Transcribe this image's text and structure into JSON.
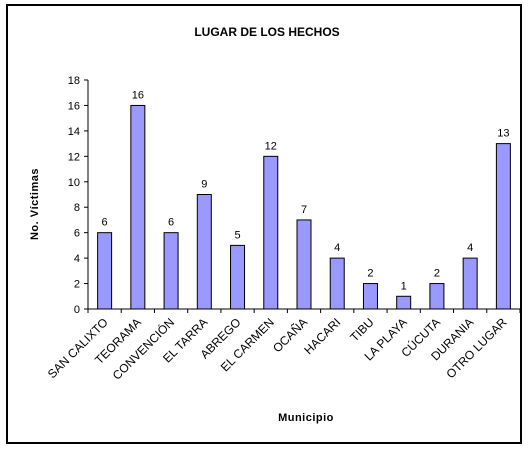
{
  "chart_data": {
    "type": "bar",
    "title": "LUGAR DE LOS HECHOS",
    "xlabel": "Municipio",
    "ylabel": "No. Víctimas",
    "ylim": [
      0,
      18
    ],
    "yticks": [
      0,
      2,
      4,
      6,
      8,
      10,
      12,
      14,
      16,
      18
    ],
    "categories": [
      "SAN CALIXTO",
      "TEORAMA",
      "CONVENCIÓN",
      "EL TARRA",
      "ABREGO",
      "EL CARMEN",
      "OCAÑA",
      "HACARI",
      "TIBU",
      "LA PLAYA",
      "CÚCUTA",
      "DURANIA",
      "OTRO LUGAR"
    ],
    "values": [
      6,
      16,
      6,
      9,
      5,
      12,
      7,
      4,
      2,
      1,
      2,
      4,
      13
    ],
    "grid": false,
    "legend": "none",
    "colors": {
      "bar_fill": "#9999ff",
      "bar_stroke": "#000000"
    }
  }
}
